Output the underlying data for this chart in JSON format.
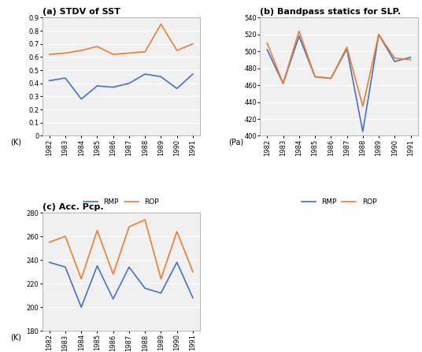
{
  "years": [
    1982,
    1983,
    1984,
    1985,
    1986,
    1987,
    1988,
    1989,
    1990,
    1991
  ],
  "sst_rmp": [
    0.42,
    0.44,
    0.28,
    0.38,
    0.37,
    0.4,
    0.47,
    0.45,
    0.36,
    0.47
  ],
  "sst_rop": [
    0.62,
    0.63,
    0.65,
    0.68,
    0.62,
    0.63,
    0.64,
    0.85,
    0.65,
    0.7
  ],
  "slp_rmp": [
    502,
    462,
    518,
    470,
    468,
    503,
    405,
    520,
    488,
    493
  ],
  "slp_rop": [
    510,
    462,
    524,
    470,
    468,
    505,
    435,
    520,
    492,
    490
  ],
  "pcp_rmp": [
    238,
    234,
    200,
    235,
    207,
    234,
    216,
    212,
    238,
    208
  ],
  "pcp_rop": [
    255,
    260,
    224,
    265,
    228,
    268,
    274,
    224,
    264,
    230
  ],
  "rmp_color": "#4472c4",
  "rop_color": "#ed7d31",
  "title_a": "(a) STDV of SST",
  "title_b": "(b) Bandpass statics for SLP.",
  "title_c": "(c) Acc. Pcp.",
  "ylabel_a": "(K)",
  "ylabel_b": "(Pa)",
  "ylabel_c": "(K)",
  "ylim_a": [
    0,
    0.9
  ],
  "yticks_a": [
    0,
    0.1,
    0.2,
    0.3,
    0.4,
    0.5,
    0.6,
    0.7,
    0.8,
    0.9
  ],
  "ylim_b": [
    400,
    540
  ],
  "yticks_b": [
    400,
    420,
    440,
    460,
    480,
    500,
    520,
    540
  ],
  "ylim_c": [
    180,
    280
  ],
  "yticks_c": [
    180,
    200,
    220,
    240,
    260,
    280
  ],
  "bg_color": "#ffffff",
  "plot_bg": "#f0f0f0"
}
